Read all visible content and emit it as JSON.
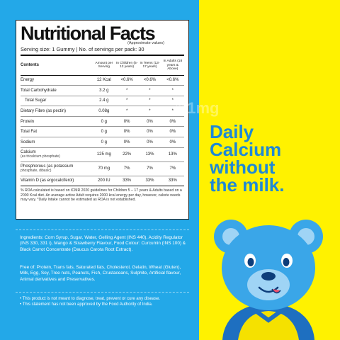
{
  "panel": {
    "title": "Nutritional Facts",
    "approx_note": "(Approximate values)",
    "serving_line": "Serving size: 1 Gummy | No. of servings per pack: 30",
    "headers": {
      "contents": "Contents",
      "amount": "Amount per Serving",
      "children": "In Children (5-12 years)",
      "teens": "In Teens (13-17 years)",
      "adults": "In Adults (18 years & Above)"
    },
    "rows": [
      {
        "name": "Energy",
        "sub": "",
        "amount": "12 Kcal",
        "children": "<0.6%",
        "teens": "<0.6%",
        "adults": "<0.6%"
      },
      {
        "name": "Total Carbohydrate",
        "sub": "",
        "amount": "3.2 g",
        "children": "*",
        "teens": "*",
        "adults": "*"
      },
      {
        "name": "Total Sugar",
        "sub": "",
        "amount": "2.4 g",
        "children": "*",
        "teens": "*",
        "adults": "*"
      },
      {
        "name": "Dietary Fibre (as pectin)",
        "sub": "",
        "amount": "0.08g",
        "children": "*",
        "teens": "*",
        "adults": "*"
      },
      {
        "name": "Protein",
        "sub": "",
        "amount": "0 g",
        "children": "0%",
        "teens": "0%",
        "adults": "0%"
      },
      {
        "name": "Total Fat",
        "sub": "",
        "amount": "0 g",
        "children": "0%",
        "teens": "0%",
        "adults": "0%"
      },
      {
        "name": "Sodium",
        "sub": "",
        "amount": "0 g",
        "children": "0%",
        "teens": "0%",
        "adults": "0%"
      },
      {
        "name": "Calcium",
        "sub": "(as tricalcium phosphate)",
        "amount": "125 mg",
        "children": "22%",
        "teens": "13%",
        "adults": "13%"
      },
      {
        "name": "Phosphorous (as potassium",
        "sub": "phosphate, dibasic)",
        "amount": "70 mg",
        "children": "7%",
        "teens": "7%",
        "adults": "7%"
      },
      {
        "name": "Vitamin D (as ergocalciferol)",
        "sub": "",
        "amount": "200 IU",
        "children": "33%",
        "teens": "33%",
        "adults": "33%"
      }
    ],
    "footnote": "% RDA calculated is based on ICMR 2020 guidelines for Children 5 – 17 years & Adults based on a 2000 Kcal diet. An average active Adult requires 2000 kcal energy per day, however, calorie needs may vary. *Daily Intake cannot be estimated as RDA is not established."
  },
  "ingredients": "Ingredients: Corn Syrup, Sugar, Water, Gelling Agent (INS 440), Acidity Regulator (INS 330, 331 i), Mango & Strawberry Flavour, Food Colour: Curcumin (INS 100) & Black Carrot Concentrate (Daucus Carota Root Extract).",
  "free_of": "Free of: Protein, Trans fats, Saturated fats, Cholesterol, Gelatin, Wheat (Gluten), Milk, Egg, Soy, Tree nuts, Peanuts, Fish, Crustaceans, Sulphite, Artificial flavour, Animal derivatives and Preservatives.",
  "disclaimers": [
    "• This product is not meant to diagnose, treat, prevent or cure any disease.",
    "• This statement has not been approved by the Food Authority of India."
  ],
  "watermark": "©1mg",
  "tagline": [
    "Daily",
    "Calcium",
    "without",
    "the milk."
  ],
  "colors": {
    "left_bg": "#23a8e8",
    "right_bg": "#fff200",
    "tagline": "#1e88d6",
    "bear_blue": "#3aa6e8",
    "bear_dark": "#1e6fc0"
  },
  "icons": {
    "mascot": "bear-mascot-icon"
  }
}
